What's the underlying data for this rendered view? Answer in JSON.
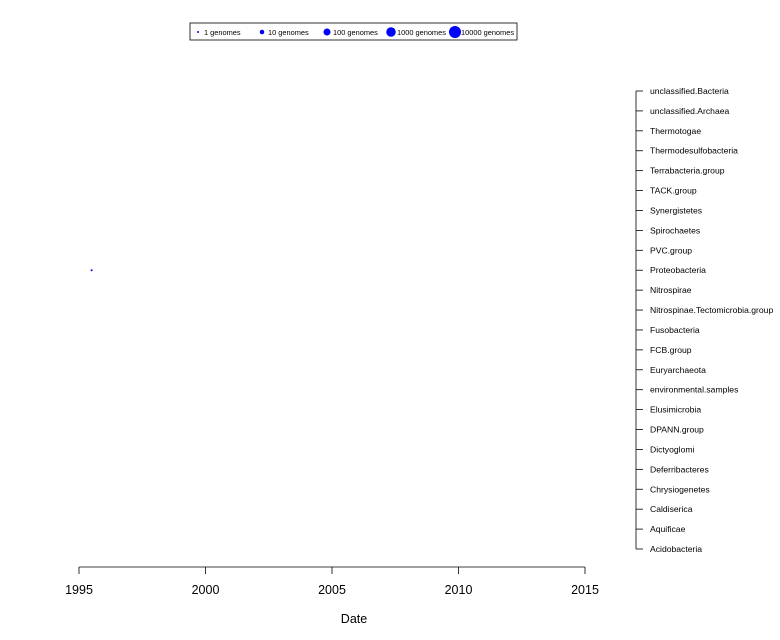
{
  "chart_data": {
    "type": "scatter",
    "xlabel": "Date",
    "x_ticks": [
      "1995",
      "2000",
      "2005",
      "2010",
      "2015"
    ],
    "xlim": [
      1995,
      2015
    ],
    "categories": [
      "unclassified.Bacteria",
      "unclassified.Archaea",
      "Thermotogae",
      "Thermodesulfobacteria",
      "Terrabacteria.group",
      "TACK.group",
      "Synergistetes",
      "Spirochaetes",
      "PVC.group",
      "Proteobacteria",
      "Nitrospirae",
      "Nitrospinae.Tectomicrobia.group",
      "Fusobacteria",
      "FCB.group",
      "Euryarchaeota",
      "environmental.samples",
      "Elusimicrobia",
      "DPANN.group",
      "Dictyoglomi",
      "Deferribacteres",
      "Chrysiogenetes",
      "Caldiserica",
      "Aquificae",
      "Acidobacteria"
    ],
    "points": [
      {
        "x": 1995.5,
        "category": "Proteobacteria",
        "genomes": 1
      }
    ],
    "legend": {
      "placement": "top-center",
      "entries": [
        {
          "label": "1 genomes",
          "genomes": 1
        },
        {
          "label": "10 genomes",
          "genomes": 10
        },
        {
          "label": "100 genomes",
          "genomes": 100
        },
        {
          "label": "1000 genomes",
          "genomes": 1000
        },
        {
          "label": "10000 genomes",
          "genomes": 10000
        }
      ]
    },
    "point_color": "#0000ff",
    "grid": false
  }
}
